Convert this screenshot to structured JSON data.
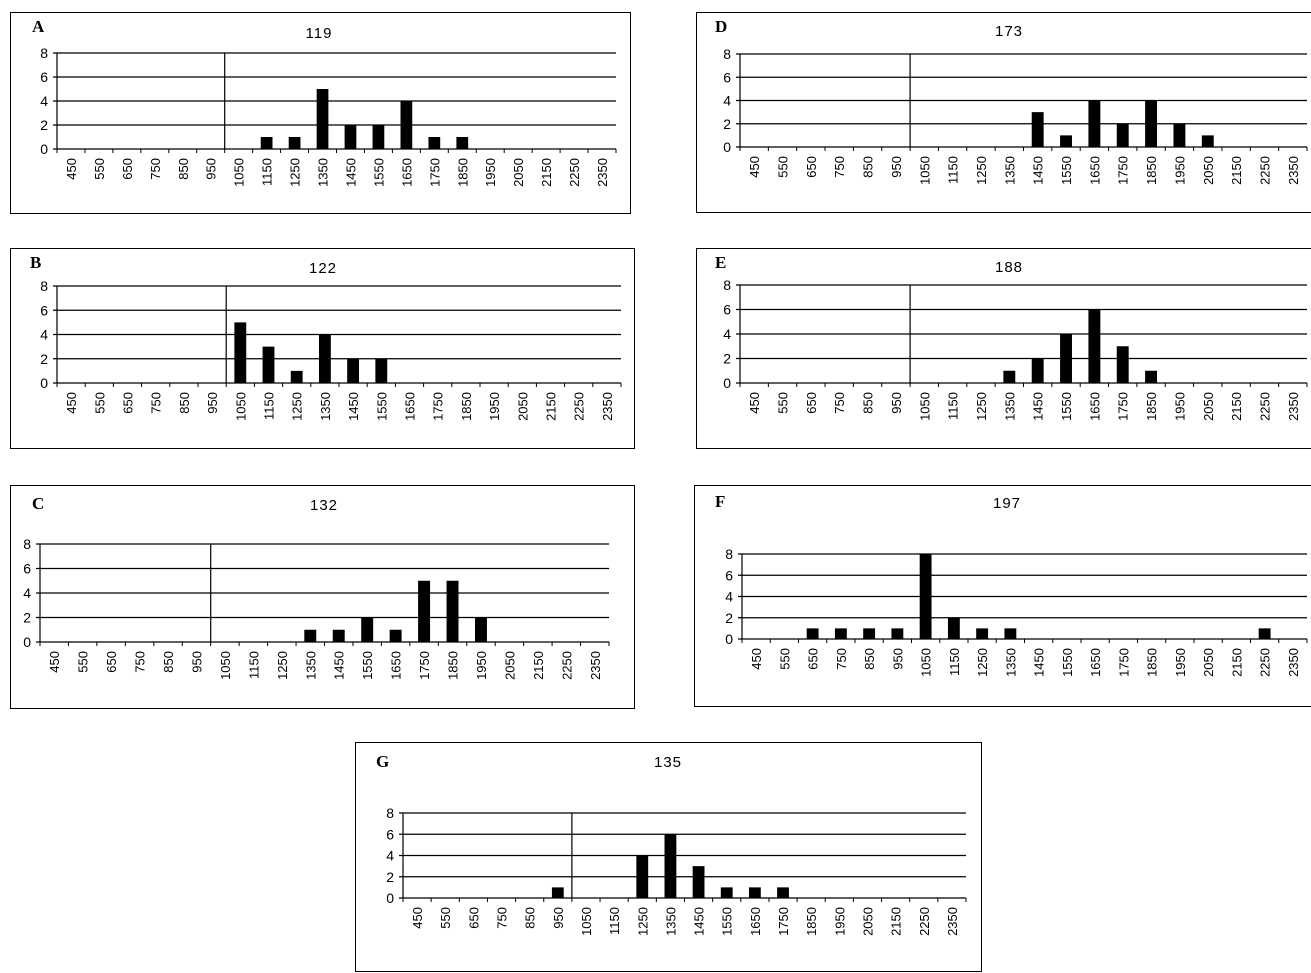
{
  "chart_data": [
    {
      "id": "A",
      "type": "bar",
      "panel_label": "A",
      "title": "119",
      "ylim": [
        0,
        8
      ],
      "yticks": [
        0,
        2,
        4,
        6,
        8
      ],
      "categories": [
        "450",
        "550",
        "650",
        "750",
        "850",
        "950",
        "1050",
        "1150",
        "1250",
        "1350",
        "1450",
        "1550",
        "1650",
        "1750",
        "1850",
        "1950",
        "2050",
        "2150",
        "2250",
        "2350"
      ],
      "values": [
        0,
        0,
        0,
        0,
        0,
        0,
        0,
        1,
        1,
        5,
        2,
        2,
        4,
        1,
        1,
        0,
        0,
        0,
        0,
        0
      ],
      "reference_x": "1050",
      "grid": true
    },
    {
      "id": "B",
      "type": "bar",
      "panel_label": "B",
      "title": "122",
      "ylim": [
        0,
        8
      ],
      "yticks": [
        0,
        2,
        4,
        6,
        8
      ],
      "categories": [
        "450",
        "550",
        "650",
        "750",
        "850",
        "950",
        "1050",
        "1150",
        "1250",
        "1350",
        "1450",
        "1550",
        "1650",
        "1750",
        "1850",
        "1950",
        "2050",
        "2150",
        "2250",
        "2350"
      ],
      "values": [
        0,
        0,
        0,
        0,
        0,
        0,
        5,
        3,
        1,
        4,
        2,
        2,
        0,
        0,
        0,
        0,
        0,
        0,
        0,
        0
      ],
      "reference_x": "1050",
      "grid": true
    },
    {
      "id": "C",
      "type": "bar",
      "panel_label": "C",
      "title": "132",
      "ylim": [
        0,
        8
      ],
      "yticks": [
        0,
        2,
        4,
        6,
        8
      ],
      "categories": [
        "450",
        "550",
        "650",
        "750",
        "850",
        "950",
        "1050",
        "1150",
        "1250",
        "1350",
        "1450",
        "1550",
        "1650",
        "1750",
        "1850",
        "1950",
        "2050",
        "2150",
        "2250",
        "2350"
      ],
      "values": [
        0,
        0,
        0,
        0,
        0,
        0,
        0,
        0,
        0,
        1,
        1,
        2,
        1,
        5,
        5,
        2,
        0,
        0,
        0,
        0
      ],
      "reference_x": "1050",
      "grid": true
    },
    {
      "id": "D",
      "type": "bar",
      "panel_label": "D",
      "title": "173",
      "ylim": [
        0,
        8
      ],
      "yticks": [
        0,
        2,
        4,
        6,
        8
      ],
      "categories": [
        "450",
        "550",
        "650",
        "750",
        "850",
        "950",
        "1050",
        "1150",
        "1250",
        "1350",
        "1450",
        "1550",
        "1650",
        "1750",
        "1850",
        "1950",
        "2050",
        "2150",
        "2250",
        "2350"
      ],
      "values": [
        0,
        0,
        0,
        0,
        0,
        0,
        0,
        0,
        0,
        0,
        3,
        1,
        4,
        2,
        4,
        2,
        1,
        0,
        0,
        0
      ],
      "reference_x": "1050",
      "grid": true
    },
    {
      "id": "E",
      "type": "bar",
      "panel_label": "E",
      "title": "188",
      "ylim": [
        0,
        8
      ],
      "yticks": [
        0,
        2,
        4,
        6,
        8
      ],
      "categories": [
        "450",
        "550",
        "650",
        "750",
        "850",
        "950",
        "1050",
        "1150",
        "1250",
        "1350",
        "1450",
        "1550",
        "1650",
        "1750",
        "1850",
        "1950",
        "2050",
        "2150",
        "2250",
        "2350"
      ],
      "values": [
        0,
        0,
        0,
        0,
        0,
        0,
        0,
        0,
        0,
        1,
        2,
        4,
        6,
        3,
        1,
        0,
        0,
        0,
        0,
        0
      ],
      "reference_x": "1050",
      "grid": true
    },
    {
      "id": "F",
      "type": "bar",
      "panel_label": "F",
      "title": "197",
      "ylim": [
        0,
        8
      ],
      "yticks": [
        0,
        2,
        4,
        6,
        8
      ],
      "categories": [
        "450",
        "550",
        "650",
        "750",
        "850",
        "950",
        "1050",
        "1150",
        "1250",
        "1350",
        "1450",
        "1550",
        "1650",
        "1750",
        "1850",
        "1950",
        "2050",
        "2150",
        "2250",
        "2350"
      ],
      "values": [
        0,
        0,
        1,
        1,
        1,
        1,
        8,
        2,
        1,
        1,
        0,
        0,
        0,
        0,
        0,
        0,
        0,
        0,
        1,
        0
      ],
      "reference_x": null,
      "grid": true
    },
    {
      "id": "G",
      "type": "bar",
      "panel_label": "G",
      "title": "135",
      "ylim": [
        0,
        8
      ],
      "yticks": [
        0,
        2,
        4,
        6,
        8
      ],
      "categories": [
        "450",
        "550",
        "650",
        "750",
        "850",
        "950",
        "1050",
        "1150",
        "1250",
        "1350",
        "1450",
        "1550",
        "1650",
        "1750",
        "1850",
        "1950",
        "2050",
        "2150",
        "2250",
        "2350"
      ],
      "values": [
        0,
        0,
        0,
        0,
        0,
        1,
        0,
        0,
        4,
        6,
        3,
        1,
        1,
        1,
        0,
        0,
        0,
        0,
        0,
        0
      ],
      "reference_x": "1050",
      "grid": true
    }
  ]
}
